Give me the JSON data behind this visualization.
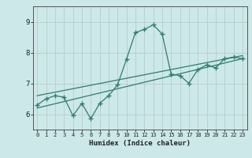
{
  "title": "",
  "xlabel": "Humidex (Indice chaleur)",
  "bg_color": "#cce8e8",
  "line_color": "#2e7d6e",
  "grid_color_v": "#b8cccc",
  "grid_color_h": "#b8cccc",
  "xlim": [
    -0.5,
    23.5
  ],
  "ylim": [
    5.5,
    9.5
  ],
  "xticks": [
    0,
    1,
    2,
    3,
    4,
    5,
    6,
    7,
    8,
    9,
    10,
    11,
    12,
    13,
    14,
    15,
    16,
    17,
    18,
    19,
    20,
    21,
    22,
    23
  ],
  "yticks": [
    6,
    7,
    8,
    9
  ],
  "main_x": [
    0,
    1,
    2,
    3,
    4,
    5,
    6,
    7,
    8,
    9,
    10,
    11,
    12,
    13,
    14,
    15,
    16,
    17,
    18,
    19,
    20,
    21,
    22,
    23
  ],
  "main_y": [
    6.3,
    6.5,
    6.6,
    6.55,
    5.95,
    6.35,
    5.85,
    6.35,
    6.6,
    6.95,
    7.78,
    8.65,
    8.75,
    8.9,
    8.6,
    7.3,
    7.25,
    7.0,
    7.45,
    7.6,
    7.5,
    7.8,
    7.85,
    7.8
  ],
  "trend1_x": [
    0,
    23
  ],
  "trend1_y": [
    6.2,
    7.8
  ],
  "trend2_x": [
    0,
    23
  ],
  "trend2_y": [
    6.6,
    7.9
  ]
}
